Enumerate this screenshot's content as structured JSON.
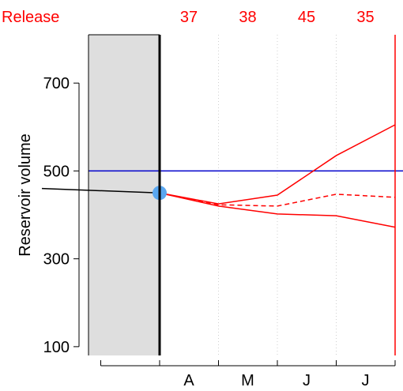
{
  "chart_data": {
    "type": "line",
    "ylabel": "Reservoir volume",
    "ylim": [
      80,
      810
    ],
    "y_ticks": [
      100,
      300,
      500,
      700
    ],
    "x_month_labels": [
      "A",
      "M",
      "J",
      "J"
    ],
    "release": {
      "label": "Release",
      "values": [
        "37",
        "38",
        "45",
        "35"
      ]
    },
    "threshold": {
      "value": 500,
      "color": "#0000cc"
    },
    "history": {
      "points": [
        [
          -2,
          460
        ],
        [
          0,
          450
        ]
      ],
      "color": "#000000"
    },
    "current_point": {
      "x": 0,
      "y": 450,
      "color": "#5aa7f0"
    },
    "forecast": {
      "color": "#ff0000",
      "series": [
        {
          "x": [
            0,
            1,
            2,
            3,
            4
          ],
          "values": [
            450,
            425,
            445,
            535,
            605
          ],
          "dash": false
        },
        {
          "x": [
            0,
            1,
            2,
            3,
            4
          ],
          "values": [
            450,
            423,
            420,
            447,
            440
          ],
          "dash": true
        },
        {
          "x": [
            0,
            1,
            2,
            3,
            4
          ],
          "values": [
            450,
            420,
            402,
            398,
            372
          ],
          "dash": false
        }
      ]
    },
    "shaded_region_color": "#dedede",
    "grid": "vertical-dotted"
  }
}
